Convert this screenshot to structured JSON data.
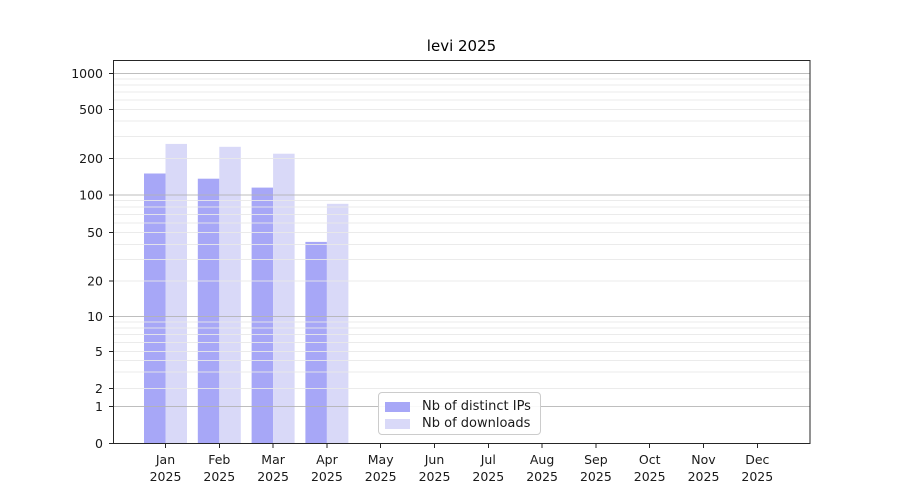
{
  "chart_data": {
    "type": "bar",
    "title": "levi 2025",
    "categories": [
      "Jan",
      "Feb",
      "Mar",
      "Apr",
      "May",
      "Jun",
      "Jul",
      "Aug",
      "Sep",
      "Oct",
      "Nov",
      "Dec"
    ],
    "year_label": "2025",
    "series": [
      {
        "name": "Nb of distinct IPs",
        "color": "#a7a7f7",
        "values": [
          150,
          136,
          115,
          42,
          0,
          0,
          0,
          0,
          0,
          0,
          0,
          0
        ]
      },
      {
        "name": "Nb of downloads",
        "color": "#d9d9f8",
        "values": [
          262,
          248,
          218,
          85,
          0,
          0,
          0,
          0,
          0,
          0,
          0,
          0
        ]
      }
    ],
    "y_ticks": [
      0,
      1,
      2,
      5,
      10,
      20,
      50,
      100,
      200,
      500,
      1000
    ],
    "y_scale": "symlog",
    "grid": {
      "orientation": "horizontal",
      "major_color": "#b3b3b3",
      "minor_color": "#e9e9e9",
      "major_values": [
        1,
        10,
        100,
        1000
      ]
    },
    "legend": {
      "position": "lower center"
    },
    "axis_color": "#262626",
    "text_color": "#1a1a1a",
    "background_color": "#ffffff"
  }
}
